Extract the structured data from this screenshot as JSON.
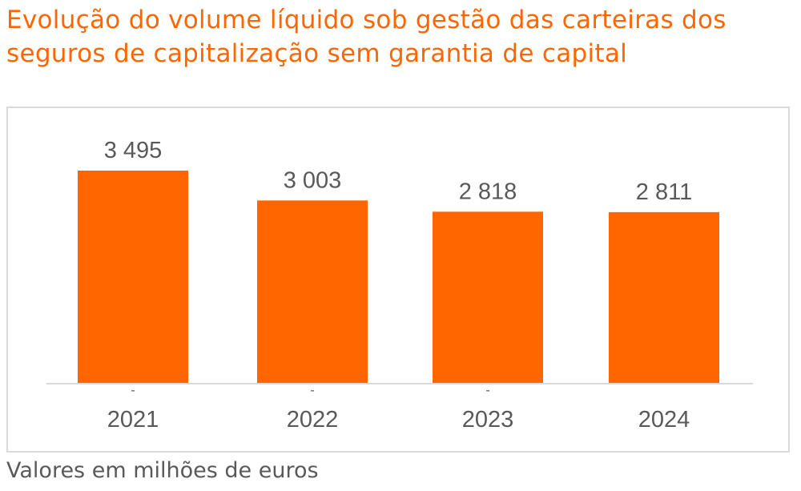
{
  "chart_data": {
    "type": "bar",
    "title": "Evolução do volume líquido sob gestão das carteiras dos seguros de capitalização sem garantia de capital",
    "categories": [
      "2021",
      "2022",
      "2023",
      "2024"
    ],
    "values": [
      3495,
      3003,
      2818,
      2811
    ],
    "data_labels": [
      "3 495",
      "3 003",
      "2 818",
      "2 811"
    ],
    "secondary_labels": [
      "-",
      "-",
      "-",
      ""
    ],
    "xlabel": "",
    "ylabel": "",
    "ylim": [
      0,
      3495
    ],
    "grid": false,
    "legend": "none",
    "bar_color": "#ff6600",
    "title_color": "#ff6600"
  },
  "footnote": "Valores em milhões de euros"
}
